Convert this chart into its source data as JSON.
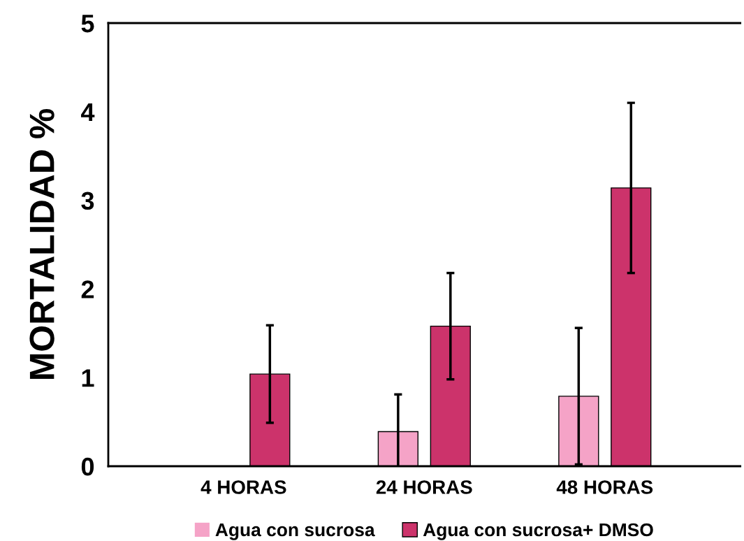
{
  "chart_data": {
    "type": "bar",
    "ylabel": "MORTALIDAD %",
    "categories": [
      "4 HORAS",
      "24 HORAS",
      "48 HORAS"
    ],
    "series": [
      {
        "name": "Agua con sucrosa",
        "color": "#f5a3c7",
        "values": [
          0,
          0.39,
          0.79
        ],
        "errors": [
          null,
          0.42,
          0.77
        ]
      },
      {
        "name": "Agua con sucrosa+ DMSO",
        "color": "#cc336b",
        "values": [
          1.04,
          1.58,
          3.14
        ],
        "errors": [
          0.55,
          0.6,
          0.96
        ]
      }
    ],
    "ylim": [
      0,
      5
    ],
    "yticks": [
      0,
      1,
      2,
      3,
      4,
      5
    ],
    "grid": false,
    "legend": "bottom"
  }
}
